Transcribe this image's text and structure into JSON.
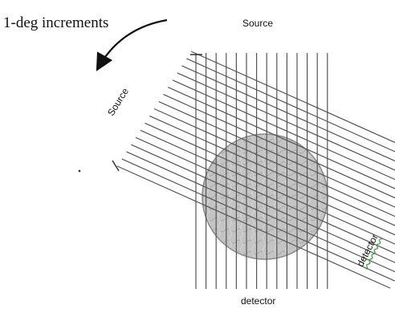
{
  "labels": {
    "title": "1-deg increments",
    "top_source": "Source",
    "diagonal_source": "Source",
    "bottom_detector": "detector",
    "diagonal_detector": "detector"
  },
  "diagram": {
    "vertical_ray_count": 14,
    "diagonal_ray_count": 17,
    "ray_color": "#555555",
    "object_fill": "#bdbdbd",
    "object_stroke": "#8a8a8a",
    "arrow_color": "#111111"
  }
}
